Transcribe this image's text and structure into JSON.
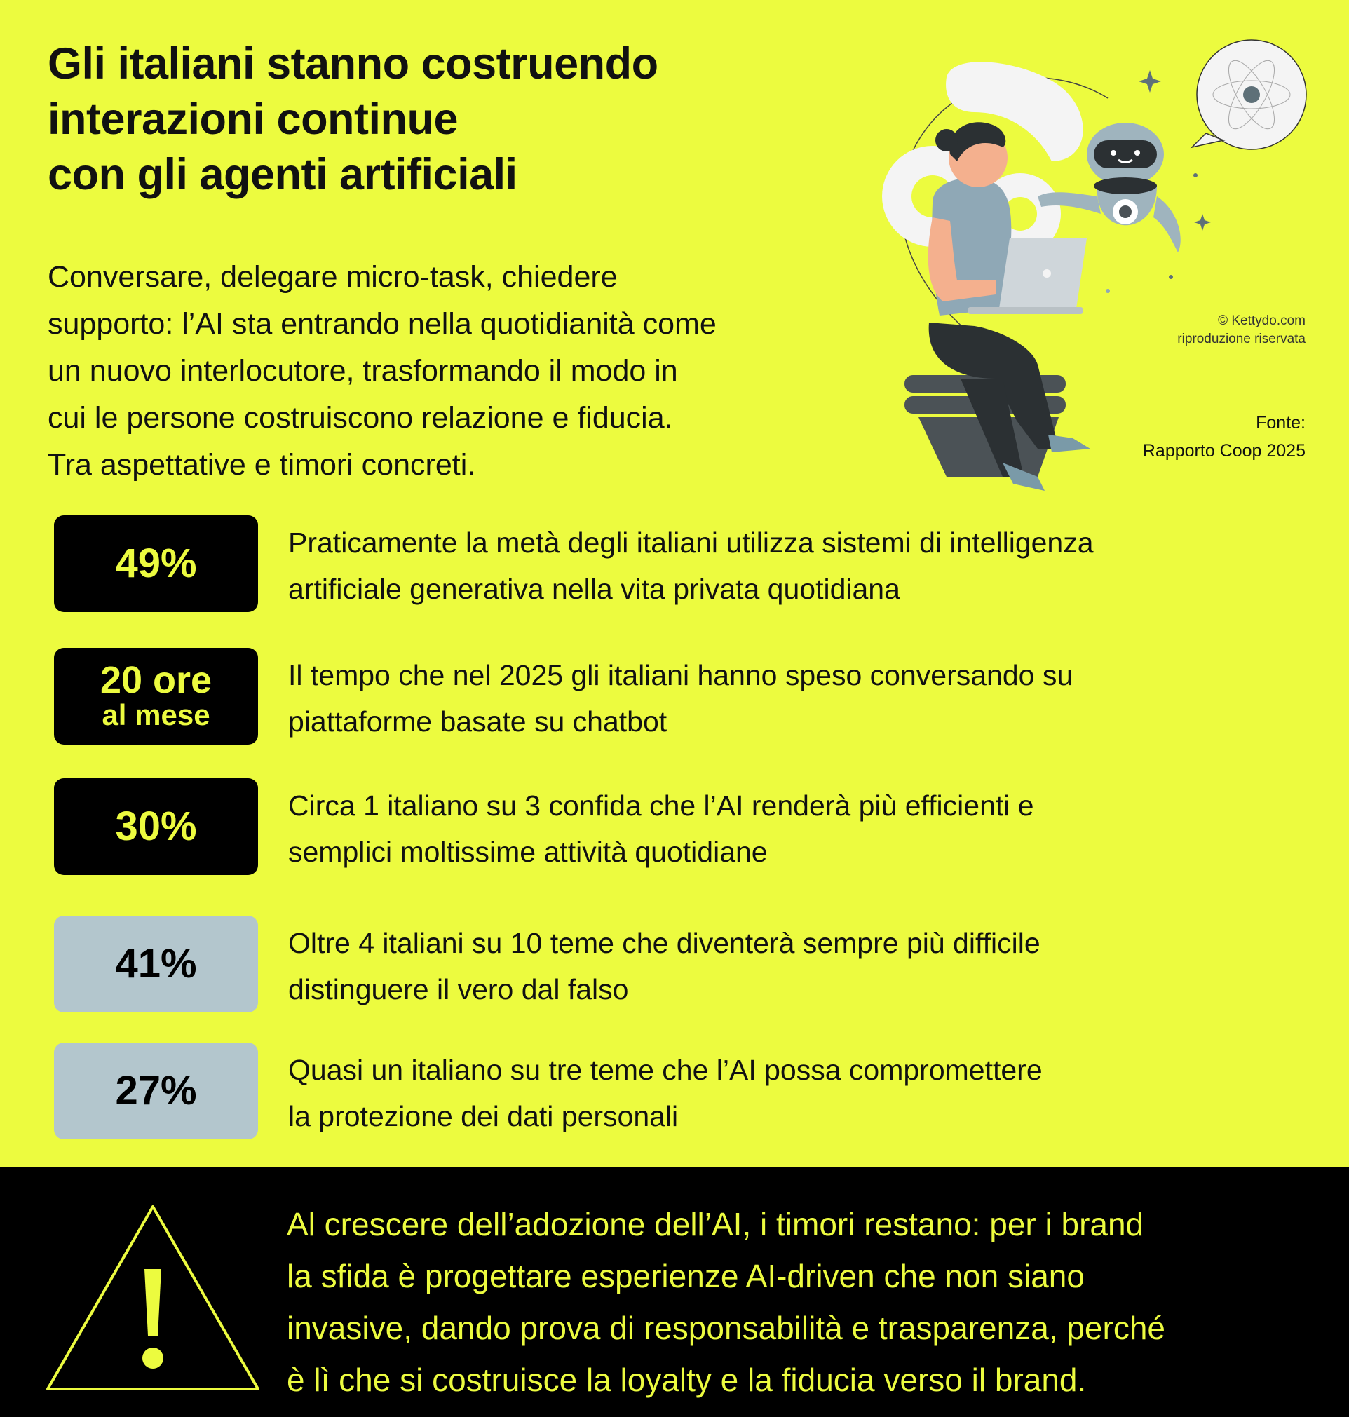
{
  "title": {
    "lines": [
      "Gli italiani stanno costruendo",
      "interazioni continue",
      "con gli agenti artificiali"
    ]
  },
  "intro": {
    "lines": [
      "Conversare, delegare micro-task, chiedere",
      "supporto: l’AI sta entrando nella quotidianità come",
      "un nuovo interlocutore, trasformando il modo in",
      "cui le persone costruiscono relazione e fiducia.",
      "Tra aspettative e timori concreti."
    ]
  },
  "credit": {
    "line1": "© Kettydo.com",
    "line2": "riproduzione riservata"
  },
  "source": {
    "label": "Fonte:",
    "name": "Rapporto Coop 2025"
  },
  "stats": [
    {
      "value": "49%",
      "style": "dark",
      "text": [
        "Praticamente la metà degli italiani utilizza sistemi di intelligenza",
        "artificiale generativa nella vita privata quotidiana"
      ]
    },
    {
      "value": "20 ore",
      "sub": "al mese",
      "style": "dark",
      "text": [
        "Il tempo che nel 2025 gli italiani hanno speso conversando su",
        "piattaforme basate su chatbot"
      ]
    },
    {
      "value": "30%",
      "style": "dark",
      "text": [
        "Circa 1 italiano su 3 confida che l’AI renderà più efficienti e",
        "semplici moltissime attività quotidiane"
      ]
    },
    {
      "value": "41%",
      "style": "light",
      "text": [
        "Oltre 4 italiani su 10 teme che diventerà sempre più difficile",
        "distinguere il vero dal falso"
      ]
    },
    {
      "value": "27%",
      "style": "light",
      "text": [
        "Quasi un italiano su tre teme che l’AI possa compromettere",
        "la protezione dei dati personali"
      ]
    }
  ],
  "footer": {
    "icon": "warning-triangle-icon",
    "lines": [
      "Al crescere dell’adozione dell’AI, i timori restano: per i brand",
      "la sfida è progettare esperienze AI-driven che non siano",
      "invasive, dando prova di responsabilità e trasparenza, perché",
      "è lì che si costruisce la loyalty e la fiducia verso il brand."
    ]
  },
  "colors": {
    "background": "#ecfb3f",
    "dark_box": "#000000",
    "light_box": "#b3c6cd",
    "accent": "#ecfb3f"
  }
}
